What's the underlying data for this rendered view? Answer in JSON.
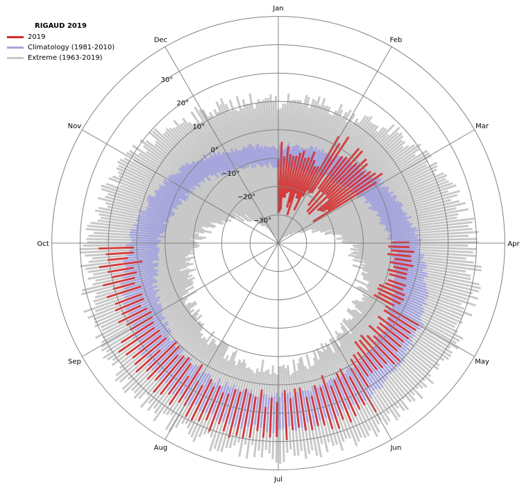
{
  "chart_data": {
    "type": "polar-bar",
    "title": "RIGAUD 2019",
    "months": [
      "Jan",
      "Feb",
      "Mar",
      "Apr",
      "May",
      "Jun",
      "Jul",
      "Aug",
      "Sep",
      "Oct",
      "Nov",
      "Dec"
    ],
    "radial_ticks": [
      "−30",
      "−20",
      "−10",
      "0",
      "10",
      "20",
      "30"
    ],
    "radial_tick_values": [
      -30,
      -20,
      -10,
      0,
      10,
      20,
      30
    ],
    "radial_range": [
      -40,
      30
    ],
    "legend": [
      {
        "label": "2019",
        "color": "#d62728"
      },
      {
        "label": "Climatology (1981-2010)",
        "color": "#a6a6dc"
      },
      {
        "label": "Extreme (1963-2019)",
        "color": "#c8c8c8"
      }
    ],
    "series": {
      "climatology_monthly": {
        "Jan": {
          "min": -13,
          "max": -6
        },
        "Feb": {
          "min": -12,
          "max": -4
        },
        "Mar": {
          "min": -7,
          "max": 2
        },
        "Apr": {
          "min": 0,
          "max": 10
        },
        "May": {
          "min": 6,
          "max": 18
        },
        "Jun": {
          "min": 11,
          "max": 23
        },
        "Jul": {
          "min": 14,
          "max": 26
        },
        "Aug": {
          "min": 13,
          "max": 25
        },
        "Sep": {
          "min": 8,
          "max": 20
        },
        "Oct": {
          "min": 2,
          "max": 13
        },
        "Nov": {
          "min": -4,
          "max": 5
        },
        "Dec": {
          "min": -10,
          "max": -3
        }
      },
      "extreme_monthly": {
        "Jan": {
          "min": -38,
          "max": 10
        },
        "Feb": {
          "min": -37,
          "max": 12
        },
        "Mar": {
          "min": -31,
          "max": 20
        },
        "Apr": {
          "min": -15,
          "max": 29
        },
        "May": {
          "min": -6,
          "max": 32
        },
        "Jun": {
          "min": 0,
          "max": 34
        },
        "Jul": {
          "min": 5,
          "max": 35
        },
        "Aug": {
          "min": 2,
          "max": 34
        },
        "Sep": {
          "min": -4,
          "max": 32
        },
        "Oct": {
          "min": -10,
          "max": 27
        },
        "Nov": {
          "min": -22,
          "max": 20
        },
        "Dec": {
          "min": -34,
          "max": 13
        }
      },
      "year_2019_monthly": {
        "Jan": {
          "min": -30,
          "max": -4
        },
        "Feb": {
          "min": -26,
          "max": 6
        },
        "Apr": {
          "min": -2,
          "max": 9
        },
        "May": {
          "min": 2,
          "max": 20
        },
        "Jun": {
          "min": 9,
          "max": 30
        },
        "Jul": {
          "min": 12,
          "max": 31
        },
        "Aug": {
          "min": 10,
          "max": 29
        },
        "Sep": {
          "min": 8,
          "max": 24
        }
      }
    }
  }
}
